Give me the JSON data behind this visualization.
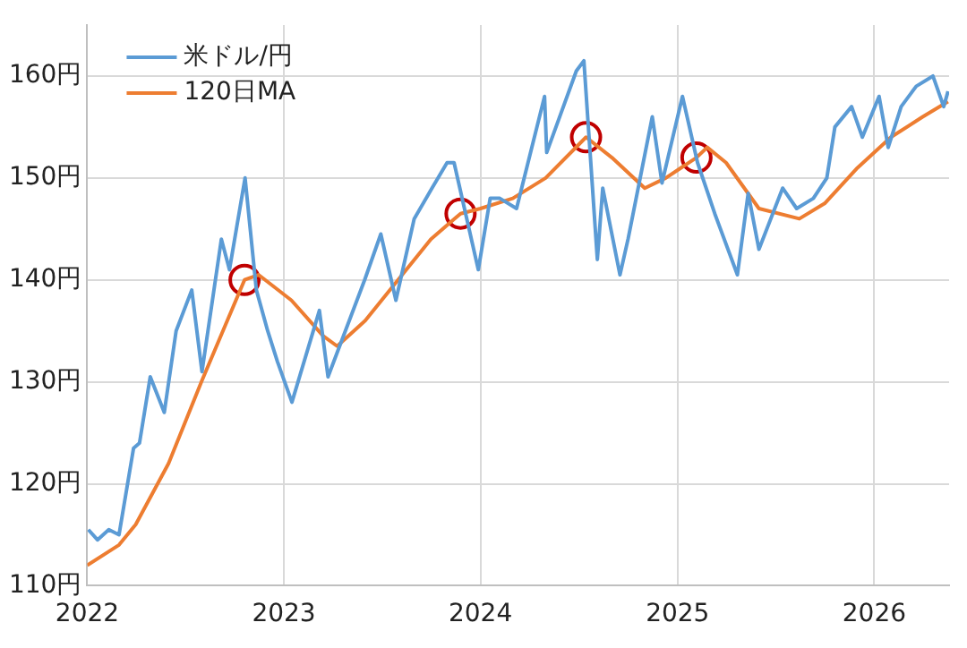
{
  "chart_data": {
    "type": "line",
    "xlim": [
      "2022-01-01",
      "2026-05-20"
    ],
    "xticks": [
      "2022",
      "2023",
      "2024",
      "2025",
      "2026"
    ],
    "ylim": [
      110,
      165
    ],
    "yticks": [
      {
        "value": 110,
        "label": "110円"
      },
      {
        "value": 120,
        "label": "120円"
      },
      {
        "value": 130,
        "label": "130円"
      },
      {
        "value": 140,
        "label": "140円"
      },
      {
        "value": 150,
        "label": "150円"
      },
      {
        "value": 160,
        "label": "160円"
      }
    ],
    "grid": true,
    "legend": "top left",
    "line_style": "solid",
    "marker": "none",
    "series": [
      {
        "name": "米ドル/円",
        "color": "#5b9bd5",
        "x": [
          "2022-01-03",
          "2022-01-20",
          "2022-02-10",
          "2022-03-01",
          "2022-03-28",
          "2022-04-08",
          "2022-04-28",
          "2022-05-24",
          "2022-06-15",
          "2022-07-14",
          "2022-08-02",
          "2022-09-07",
          "2022-09-22",
          "2022-10-21",
          "2022-11-11",
          "2022-12-02",
          "2022-12-20",
          "2023-01-16",
          "2023-03-08",
          "2023-03-24",
          "2023-05-31",
          "2023-06-30",
          "2023-07-28",
          "2023-08-31",
          "2023-10-03",
          "2023-10-31",
          "2023-11-13",
          "2023-12-28",
          "2024-01-19",
          "2024-02-06",
          "2024-03-08",
          "2024-04-29",
          "2024-05-03",
          "2024-06-27",
          "2024-07-11",
          "2024-08-05",
          "2024-08-15",
          "2024-09-16",
          "2024-10-01",
          "2024-11-15",
          "2024-12-03",
          "2025-01-10",
          "2025-02-07",
          "2025-03-11",
          "2025-04-22",
          "2025-05-12",
          "2025-06-01",
          "2025-07-15",
          "2025-08-10",
          "2025-09-10",
          "2025-10-05",
          "2025-10-20",
          "2025-11-20",
          "2025-12-10",
          "2026-01-10",
          "2026-01-27",
          "2026-02-20",
          "2026-03-20",
          "2026-04-20",
          "2026-05-10",
          "2026-05-18"
        ],
        "values": [
          115.5,
          114.5,
          115.5,
          115,
          123.5,
          124,
          130.5,
          127,
          135,
          139,
          131,
          144,
          141,
          150,
          139,
          135,
          132,
          128,
          137,
          130.5,
          140,
          144.5,
          138,
          146,
          149,
          151.5,
          151.5,
          141,
          148,
          148,
          147,
          158,
          152.5,
          160.5,
          161.5,
          142,
          149,
          140.5,
          144,
          156,
          149.5,
          158,
          151.5,
          146.5,
          140.5,
          148.5,
          143,
          149,
          147,
          148,
          150,
          155,
          157,
          154,
          158,
          153,
          157,
          159,
          160,
          157,
          158.5
        ]
      },
      {
        "name": "120日MA",
        "color": "#ed7d31",
        "x": [
          "2022-01-01",
          "2022-03-01",
          "2022-04-01",
          "2022-06-01",
          "2022-08-01",
          "2022-10-20",
          "2022-11-15",
          "2023-01-15",
          "2023-03-15",
          "2023-04-10",
          "2023-06-01",
          "2023-08-01",
          "2023-10-01",
          "2023-11-25",
          "2024-01-01",
          "2024-03-01",
          "2024-05-01",
          "2024-07-15",
          "2024-09-01",
          "2024-11-01",
          "2024-12-10",
          "2025-02-05",
          "2025-02-25",
          "2025-04-01",
          "2025-06-01",
          "2025-08-15",
          "2025-10-01",
          "2025-12-01",
          "2026-02-01",
          "2026-04-01",
          "2026-05-18"
        ],
        "values": [
          112,
          114,
          116,
          122,
          130,
          140,
          140.5,
          138,
          134.5,
          133.5,
          136,
          140,
          144,
          146.5,
          147,
          148,
          150,
          154,
          152,
          149,
          150,
          152,
          153,
          151.5,
          147,
          146,
          147.5,
          151,
          154,
          156,
          157.5
        ]
      },
      {
        "type": "scatter",
        "color": "#c00000",
        "marker": "circle",
        "x": [
          "2022-10-20",
          "2023-11-25",
          "2024-07-15",
          "2025-02-05"
        ],
        "values": [
          140,
          146.5,
          154,
          152
        ]
      }
    ]
  }
}
